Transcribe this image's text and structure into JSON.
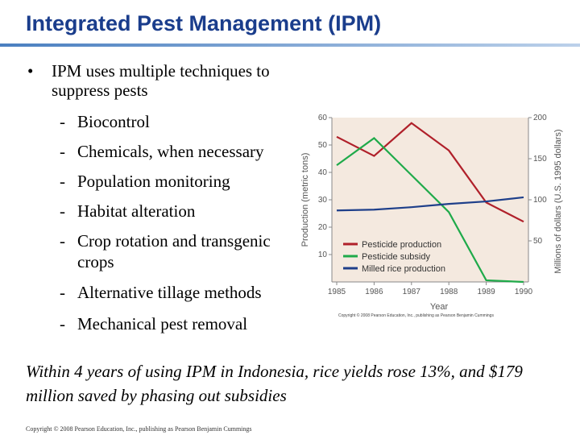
{
  "slide": {
    "title": "Integrated Pest Management (IPM)",
    "bullet": {
      "marker": "•",
      "text": "IPM uses multiple techniques to suppress pests"
    },
    "sub_marker": "-",
    "sub_items": [
      "Biocontrol",
      "Chemicals, when necessary",
      "Population monitoring",
      "Habitat alteration",
      "Crop rotation and transgenic crops",
      "Alternative tillage methods",
      "Mechanical pest removal"
    ],
    "footnote": "Within 4 years of using IPM in Indonesia, rice yields rose 13%, and $179 million saved by phasing out subsidies",
    "copyright": "Copyright © 2008 Pearson Education, Inc., publishing as Pearson Benjamin Cummings"
  },
  "chart_data": {
    "type": "line",
    "x": [
      1985,
      1986,
      1987,
      1988,
      1989,
      1990
    ],
    "xlabel": "Year",
    "ylabel_left": "Production (metric tons)",
    "ylabel_right": "Millions of dollars (U.S. 1995 dollars)",
    "ylim_left": [
      0,
      60
    ],
    "ylim_right": [
      0,
      200
    ],
    "yticks_left": [
      10,
      20,
      30,
      40,
      50,
      60
    ],
    "yticks_right": [
      50,
      100,
      150,
      200
    ],
    "credit": "Copyright © 2008 Pearson Education, Inc., publishing as Pearson Benjamin Cummings",
    "legend_position": "bottom-left",
    "series": [
      {
        "name": "Pesticide production",
        "axis": "left",
        "color": "#b0202a",
        "values": [
          53,
          46,
          58,
          48,
          29,
          22
        ]
      },
      {
        "name": "Pesticide subsidy",
        "axis": "right",
        "color": "#1faa4a",
        "values": [
          142,
          175,
          130,
          85,
          2,
          0
        ]
      },
      {
        "name": "Milled rice production",
        "axis": "right",
        "color": "#1e3f8a",
        "values": [
          87,
          88,
          91,
          95,
          98,
          103
        ]
      }
    ],
    "background": "#f4e9df"
  }
}
